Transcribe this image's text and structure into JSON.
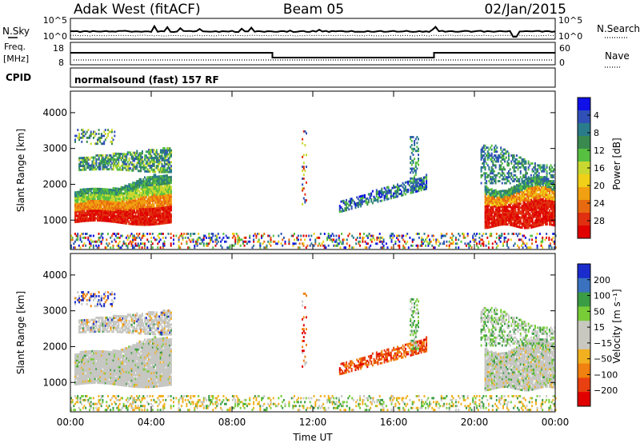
{
  "header": {
    "station": "Adak West (fitACF)",
    "beam": "Beam 05",
    "date": "02/Jan/2015"
  },
  "panels": {
    "nsky": {
      "label": "N.Sky",
      "right_label": "N.Search",
      "ticks": [
        "10^5",
        "10^0"
      ]
    },
    "freq": {
      "label_top": "Freq.",
      "label_bottom": "[MHz]",
      "left_ticks": [
        "18",
        "8"
      ],
      "right_ticks": [
        "60",
        "0"
      ],
      "right_label": "Nave"
    },
    "cpid": {
      "label": "CPID",
      "text": "normalsound (fast) 157 RF"
    }
  },
  "chart_data": [
    {
      "type": "heatmap",
      "name": "Power",
      "ylabel": "Slant Range [km]",
      "xlabel": "",
      "ylim": [
        180,
        4600
      ],
      "xlim": [
        0,
        24
      ],
      "y_ticks": [
        "1000",
        "2000",
        "3000",
        "4000"
      ],
      "colorbar": {
        "label": "Power [dB]",
        "ticks": [
          "4",
          "8",
          "12",
          "16",
          "20",
          "24",
          "28"
        ],
        "colors": [
          "#1010e8",
          "#3050b8",
          "#2a7c8a",
          "#3a8a50",
          "#58c040",
          "#c8d830",
          "#f0d018",
          "#f0a010",
          "#e86a10",
          "#e03010",
          "#e00000"
        ]
      }
    },
    {
      "type": "heatmap",
      "name": "Velocity",
      "ylabel": "Slant Range [km]",
      "xlabel": "Time UT",
      "ylim": [
        180,
        4600
      ],
      "xlim": [
        0,
        24
      ],
      "y_ticks": [
        "1000",
        "2000",
        "3000",
        "4000"
      ],
      "x_ticks": [
        "00:00",
        "04:00",
        "08:00",
        "12:00",
        "16:00",
        "20:00",
        "00:00"
      ],
      "colorbar": {
        "label": "Velocity [m s⁻¹]",
        "ticks": [
          "200",
          "100",
          "50",
          "15",
          "−15",
          "−50",
          "−100",
          "−200"
        ],
        "colors": [
          "#1a2ccc",
          "#3a72c0",
          "#3a9c44",
          "#78cc38",
          "#c8c8c0",
          "#c8c8c0",
          "#f0b020",
          "#f08010",
          "#e84010",
          "#e00000"
        ]
      }
    }
  ],
  "colors": {
    "grey_scatter": "#c6c6c2",
    "low_scatter": "#f0b020"
  }
}
